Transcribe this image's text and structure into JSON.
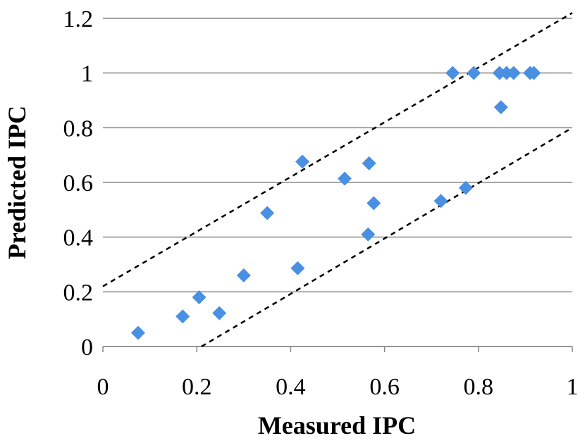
{
  "chart_data": {
    "type": "scatter",
    "title": "",
    "xlabel": "Measured IPC",
    "ylabel": "Predicted IPC",
    "xlim": [
      0,
      1
    ],
    "ylim": [
      0,
      1.2
    ],
    "x_ticks": [
      "0",
      "0.2",
      "0.4",
      "0.6",
      "0.8",
      "1"
    ],
    "y_ticks": [
      "0",
      "0.2",
      "0.4",
      "0.6",
      "0.8",
      "1",
      "1.2"
    ],
    "grid": "horizontal",
    "marker": "diamond",
    "marker_color": "#4a90e2",
    "series": [
      {
        "name": "IPC",
        "points": [
          [
            0.075,
            0.05
          ],
          [
            0.17,
            0.11
          ],
          [
            0.205,
            0.18
          ],
          [
            0.248,
            0.122
          ],
          [
            0.3,
            0.26
          ],
          [
            0.35,
            0.488
          ],
          [
            0.415,
            0.286
          ],
          [
            0.425,
            0.676
          ],
          [
            0.515,
            0.614
          ],
          [
            0.565,
            0.41
          ],
          [
            0.567,
            0.67
          ],
          [
            0.577,
            0.524
          ],
          [
            0.72,
            0.532
          ],
          [
            0.773,
            0.58
          ],
          [
            0.745,
            1.0
          ],
          [
            0.79,
            1.0
          ],
          [
            0.845,
            1.0
          ],
          [
            0.848,
            0.875
          ],
          [
            0.86,
            1.0
          ],
          [
            0.875,
            1.0
          ],
          [
            0.91,
            1.0
          ],
          [
            0.918,
            1.0
          ]
        ]
      }
    ],
    "reference_lines": [
      {
        "name": "upper-bound",
        "style": "dashed",
        "color": "#000000",
        "x": [
          0,
          1
        ],
        "y": [
          0.22,
          1.22
        ]
      },
      {
        "name": "lower-bound",
        "style": "dashed",
        "color": "#000000",
        "x": [
          0.21,
          1
        ],
        "y": [
          0,
          0.8
        ]
      }
    ]
  }
}
